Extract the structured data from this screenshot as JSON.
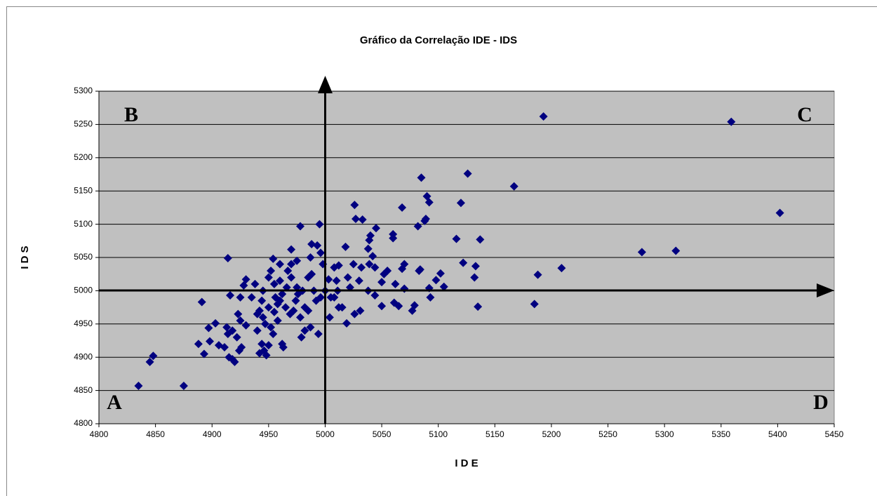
{
  "chart_data": {
    "type": "scatter",
    "title": "Gráfico da Correlação IDE - IDS",
    "x_label": "I D E",
    "y_label": "I D S",
    "annotations": [
      "A",
      "B",
      "C",
      "D"
    ],
    "color": "#000080",
    "plot_background": "#c0c0c0",
    "grid": true,
    "xlim": [
      4800,
      5450
    ],
    "xticks": [
      4800,
      4850,
      4900,
      4950,
      5000,
      5050,
      5100,
      5150,
      5200,
      5250,
      5300,
      5350,
      5400,
      5450
    ],
    "ylim": [
      4800,
      5300
    ],
    "yticks": [
      4800,
      4850,
      4900,
      4950,
      5000,
      5050,
      5100,
      5150,
      5200,
      5250,
      5300
    ],
    "x": [
      4835,
      4875,
      4845,
      4848,
      5193,
      5359,
      5402,
      5280,
      5310,
      5209,
      5188,
      5185,
      5167,
      5126,
      5120,
      5085,
      5090,
      5092,
      5089,
      5088,
      5116,
      5137,
      5133,
      5132,
      5135,
      5122,
      5105,
      5102,
      5098,
      5092,
      5093,
      5082,
      5084,
      5083,
      5079,
      5077,
      5070,
      5068,
      5068,
      5070,
      5060,
      5060,
      5062,
      5061,
      5065,
      5055,
      5052,
      5050,
      5050,
      5045,
      5044,
      5042,
      5044,
      5040,
      5039,
      5038,
      5039,
      5038,
      5033,
      5032,
      5031,
      5026,
      5027,
      5025,
      5026,
      5018,
      5019,
      5015,
      5012,
      5008,
      5020,
      5022,
      5030,
      5010,
      5004,
      5003,
      4995,
      4996,
      4993,
      4988,
      4987,
      4998,
      4978,
      4970,
      4975,
      4970,
      4967,
      4960,
      4954,
      4952,
      4950,
      4914,
      4930,
      4928,
      4938,
      4916,
      4925,
      4891,
      4897,
      4903,
      4898,
      4906,
      4911,
      4888,
      4893,
      4913,
      4914,
      4918,
      4915,
      4920,
      4918,
      4922,
      4923,
      4925,
      4926,
      4924,
      4930,
      4940,
      4942,
      4944,
      4946,
      4948,
      4950,
      4944,
      4942,
      4945,
      4947,
      4950,
      4952,
      4954,
      4955,
      4958,
      4960,
      4962,
      4963,
      4965,
      4966,
      4969,
      4972,
      4974,
      4976,
      4978,
      4979,
      4982,
      4982,
      4985,
      4987,
      4990,
      4992,
      4994,
      4996,
      5000,
      5005,
      5008,
      5011,
      5012,
      4940,
      4935,
      4945,
      4955,
      4960,
      4970,
      4975,
      4980,
      4985,
      4988,
      4962,
      4956,
      4958
    ],
    "values": [
      4857,
      4857,
      4893,
      4902,
      5262,
      5254,
      5117,
      5058,
      5060,
      5034,
      5024,
      4980,
      5157,
      5176,
      5132,
      5170,
      5142,
      5133,
      5108,
      5105,
      5078,
      5077,
      5037,
      5020,
      4976,
      5042,
      5006,
      5026,
      5016,
      5004,
      4990,
      5097,
      5032,
      5030,
      4978,
      4970,
      5040,
      5125,
      5033,
      5003,
      5085,
      5079,
      5010,
      4982,
      4977,
      5030,
      5025,
      5013,
      4977,
      5094,
      5035,
      5052,
      4993,
      5083,
      5076,
      5063,
      5040,
      5000,
      5107,
      5035,
      4970,
      5129,
      5108,
      5040,
      4965,
      5066,
      4951,
      4975,
      5038,
      5035,
      5020,
      5005,
      5015,
      5015,
      4960,
      5017,
      5100,
      5057,
      5068,
      5070,
      5050,
      5040,
      5097,
      5062,
      5045,
      5040,
      5030,
      5040,
      5048,
      5030,
      5020,
      5049,
      5017,
      5008,
      5010,
      4993,
      4990,
      4983,
      4944,
      4951,
      4924,
      4918,
      4915,
      4920,
      4905,
      4945,
      4935,
      4940,
      4900,
      4893,
      4897,
      4930,
      4965,
      4955,
      4915,
      4910,
      4948,
      4940,
      4906,
      4920,
      4910,
      4903,
      4918,
      4985,
      4970,
      4960,
      4950,
      4975,
      4945,
      4935,
      4968,
      4955,
      4985,
      4920,
      4915,
      4975,
      5005,
      4965,
      4970,
      4985,
      4995,
      4960,
      4930,
      4940,
      4975,
      4970,
      4945,
      5000,
      4985,
      4935,
      4990,
      5000,
      4990,
      4990,
      5000,
      4975,
      4965,
      4990,
      5000,
      5010,
      5015,
      5020,
      5005,
      5000,
      5020,
      5025,
      4995,
      4990,
      4980
    ]
  }
}
